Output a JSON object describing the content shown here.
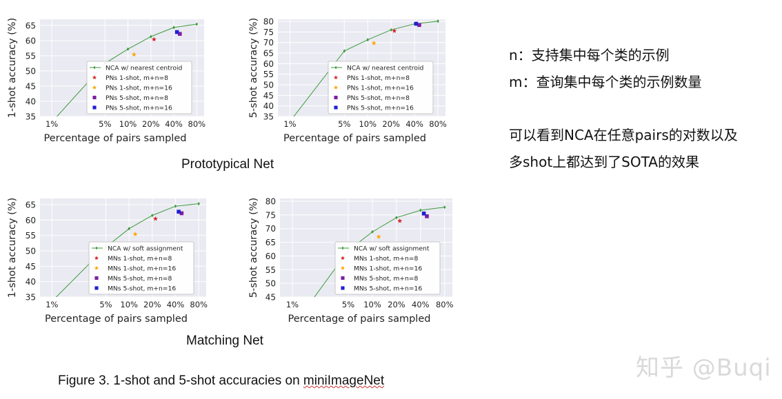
{
  "chart_data": [
    {
      "type": "line",
      "id": "pn-1shot",
      "xlabel": "Percentage of pairs sampled",
      "ylabel": "1-shot accuracy (%)",
      "x_scale": "log",
      "x_ticks": [
        1,
        5,
        10,
        20,
        40,
        80
      ],
      "x_tick_labels": [
        "1%",
        "5%",
        "10%",
        "20%",
        "40%",
        "80%"
      ],
      "xlim": [
        0.7,
        100
      ],
      "y_ticks": [
        35,
        40,
        45,
        50,
        55,
        60,
        65
      ],
      "ylim": [
        35,
        67
      ],
      "grid": true,
      "legend_position": "lower-right",
      "line": {
        "name": "NCA w/ nearest centroid",
        "x": [
          0.6,
          5,
          10,
          20,
          40,
          80
        ],
        "y": [
          27,
          52.5,
          57.2,
          61.3,
          64.3,
          65.4
        ],
        "color": "#3a9a3a"
      },
      "markers": [
        {
          "name": "PNs 1-shot, m+n=8",
          "shape": "star",
          "color": "#d62728",
          "x": 22,
          "y": 60.4
        },
        {
          "name": "PNs 1-shot, m+n=16",
          "shape": "star",
          "color": "#ffa500",
          "x": 12,
          "y": 55.4
        },
        {
          "name": "PNs 5-shot, m+n=8",
          "shape": "square",
          "color": "#7b1fa2",
          "x": 48,
          "y": 62.2
        },
        {
          "name": "PNs 5-shot, m+n=16",
          "shape": "square",
          "color": "#1f1fd6",
          "x": 44,
          "y": 62.8
        }
      ]
    },
    {
      "type": "line",
      "id": "pn-5shot",
      "xlabel": "Percentage of pairs sampled",
      "ylabel": "5-shot accuracy (%)",
      "x_scale": "log",
      "x_ticks": [
        1,
        5,
        10,
        20,
        40,
        80
      ],
      "x_tick_labels": [
        "1%",
        "5%",
        "10%",
        "20%",
        "40%",
        "80%"
      ],
      "xlim": [
        0.7,
        100
      ],
      "y_ticks": [
        35,
        40,
        45,
        50,
        55,
        60,
        65,
        70,
        75,
        80
      ],
      "ylim": [
        35,
        81
      ],
      "grid": true,
      "legend_position": "lower-right",
      "line": {
        "name": "NCA w/ nearest centroid",
        "x": [
          0.8,
          5,
          10,
          20,
          40,
          80
        ],
        "y": [
          28,
          66,
          71.3,
          76,
          78.8,
          80.1
        ],
        "color": "#3a9a3a"
      },
      "markers": [
        {
          "name": "PNs 1-shot, m+n=8",
          "shape": "star",
          "color": "#d62728",
          "x": 22,
          "y": 75.5
        },
        {
          "name": "PNs 1-shot, m+n=16",
          "shape": "star",
          "color": "#ffa500",
          "x": 12,
          "y": 69.7
        },
        {
          "name": "PNs 5-shot, m+n=8",
          "shape": "square",
          "color": "#7b1fa2",
          "x": 46,
          "y": 78.3
        },
        {
          "name": "PNs 5-shot, m+n=16",
          "shape": "square",
          "color": "#1f1fd6",
          "x": 42,
          "y": 78.9
        }
      ]
    },
    {
      "type": "line",
      "id": "mn-1shot",
      "xlabel": "Percentage of pairs sampled",
      "ylabel": "1-shot accuracy (%)",
      "x_scale": "log",
      "x_ticks": [
        1,
        5,
        10,
        20,
        40,
        80
      ],
      "x_tick_labels": [
        "1%",
        "5%",
        "10%",
        "20%",
        "40%",
        "80%"
      ],
      "xlim": [
        0.7,
        100
      ],
      "y_ticks": [
        35,
        40,
        45,
        50,
        55,
        60,
        65
      ],
      "ylim": [
        35,
        67
      ],
      "grid": true,
      "legend_position": "lower-right",
      "line": {
        "name": "NCA w/ soft assignment",
        "x": [
          0.6,
          5,
          10,
          20,
          40,
          80
        ],
        "y": [
          28,
          51.2,
          57.2,
          61.5,
          64.5,
          65.3
        ],
        "color": "#3a9a3a"
      },
      "markers": [
        {
          "name": "MNs 1-shot, m+n=8",
          "shape": "star",
          "color": "#d62728",
          "x": 22,
          "y": 60.4
        },
        {
          "name": "MNs 1-shot, m+n=16",
          "shape": "star",
          "color": "#ffa500",
          "x": 12,
          "y": 55.4
        },
        {
          "name": "MNs 5-shot, m+n=8",
          "shape": "square",
          "color": "#7b1fa2",
          "x": 48,
          "y": 62.2
        },
        {
          "name": "MNs 5-shot, m+n=16",
          "shape": "square",
          "color": "#1f1fd6",
          "x": 44,
          "y": 62.7
        }
      ]
    },
    {
      "type": "line",
      "id": "mn-5shot",
      "xlabel": "Percentage of pairs sampled",
      "ylabel": "5-shot accuracy (%)",
      "x_scale": "log",
      "x_ticks": [
        1,
        5,
        10,
        20,
        40,
        80
      ],
      "x_tick_labels": [
        "1%",
        "5%",
        "10%",
        "20%",
        "40%",
        "80%"
      ],
      "xlim": [
        0.7,
        100
      ],
      "y_ticks": [
        45,
        50,
        55,
        60,
        65,
        70,
        75,
        80
      ],
      "ylim": [
        45,
        81
      ],
      "grid": true,
      "legend_position": "lower-right",
      "line": {
        "name": "NCA w/ soft assignment",
        "x": [
          1.5,
          5,
          10,
          20,
          40,
          80
        ],
        "y": [
          41,
          62,
          68.8,
          74,
          76.7,
          77.8
        ],
        "color": "#3a9a3a"
      },
      "markers": [
        {
          "name": "MNs 1-shot, m+n=8",
          "shape": "star",
          "color": "#d62728",
          "x": 22,
          "y": 72.8
        },
        {
          "name": "MNs 1-shot, m+n=16",
          "shape": "star",
          "color": "#ffa500",
          "x": 12,
          "y": 67
        },
        {
          "name": "MNs 5-shot, m+n=8",
          "shape": "square",
          "color": "#7b1fa2",
          "x": 48,
          "y": 74.5
        },
        {
          "name": "MNs 5-shot, m+n=16",
          "shape": "square",
          "color": "#1f1fd6",
          "x": 44,
          "y": 75.5
        }
      ]
    }
  ],
  "captions": {
    "prototypical": "Prototypical Net",
    "matching": "Matching Net",
    "figure": "Figure 3. 1-shot and 5-shot accuracies on ",
    "figure_dataset": "miniImageNet"
  },
  "notes": {
    "n_line": "n：支持集中每个类的示例",
    "m_line": "m：查询集中每个类的示例数量",
    "conclusion_1": "可以看到NCA在任意pairs的对数以及",
    "conclusion_2": "多shot上都达到了SOTA的效果"
  },
  "watermark": "知乎 @Buqi"
}
